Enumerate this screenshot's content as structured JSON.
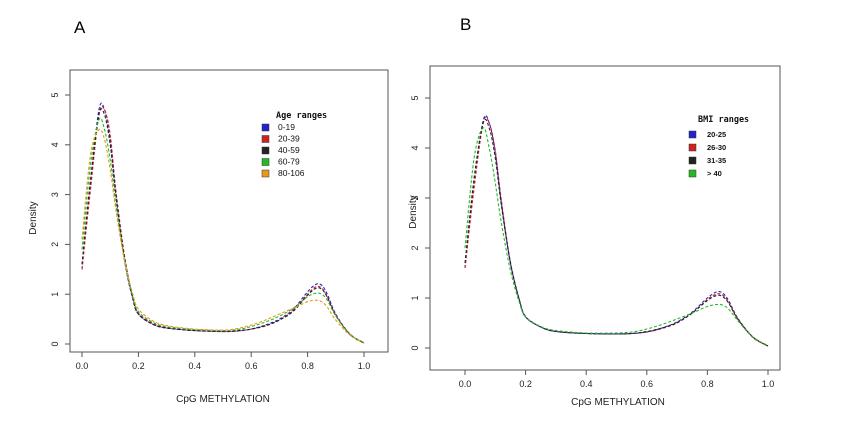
{
  "chart_data": [
    {
      "type": "line",
      "panel": "A",
      "xlabel": "CpG METHYLATION",
      "ylabel": "Density",
      "xlim": [
        0,
        1
      ],
      "ylim": [
        0,
        5
      ],
      "xticks": [
        "0.0",
        "0.2",
        "0.4",
        "0.6",
        "0.8",
        "1.0"
      ],
      "yticks": [
        "0",
        "1",
        "2",
        "3",
        "4",
        "5"
      ],
      "grid": false,
      "legend_title": "Age ranges",
      "legend_position": "top-right",
      "x": [
        0.0,
        0.03,
        0.06,
        0.08,
        0.1,
        0.12,
        0.15,
        0.18,
        0.2,
        0.25,
        0.3,
        0.4,
        0.5,
        0.55,
        0.6,
        0.65,
        0.7,
        0.75,
        0.8,
        0.83,
        0.85,
        0.87,
        0.9,
        0.95,
        1.0
      ],
      "series": [
        {
          "name": "0-19",
          "color": "#2222cc",
          "values": [
            1.5,
            3.2,
            4.7,
            4.7,
            4.1,
            3.0,
            1.7,
            0.9,
            0.6,
            0.4,
            0.32,
            0.27,
            0.25,
            0.26,
            0.3,
            0.38,
            0.5,
            0.7,
            1.05,
            1.2,
            1.18,
            1.0,
            0.6,
            0.2,
            0.02
          ]
        },
        {
          "name": "20-39",
          "color": "#cc2222",
          "values": [
            1.5,
            3.1,
            4.6,
            4.7,
            4.2,
            3.1,
            1.8,
            0.95,
            0.62,
            0.42,
            0.33,
            0.27,
            0.25,
            0.26,
            0.3,
            0.36,
            0.48,
            0.68,
            1.0,
            1.15,
            1.12,
            0.95,
            0.58,
            0.2,
            0.02
          ]
        },
        {
          "name": "40-59",
          "color": "#222222",
          "values": [
            1.6,
            3.3,
            4.6,
            4.6,
            4.0,
            3.0,
            1.75,
            0.92,
            0.6,
            0.4,
            0.32,
            0.27,
            0.26,
            0.27,
            0.3,
            0.37,
            0.48,
            0.66,
            0.98,
            1.12,
            1.1,
            0.94,
            0.57,
            0.19,
            0.02
          ]
        },
        {
          "name": "60-79",
          "color": "#22bb22",
          "values": [
            1.9,
            3.6,
            4.5,
            4.3,
            3.7,
            2.8,
            1.7,
            0.95,
            0.65,
            0.44,
            0.35,
            0.29,
            0.27,
            0.29,
            0.35,
            0.44,
            0.56,
            0.72,
            0.95,
            1.02,
            1.0,
            0.88,
            0.56,
            0.2,
            0.03
          ]
        },
        {
          "name": "80-106",
          "color": "#e69a1a",
          "values": [
            2.1,
            3.8,
            4.3,
            4.1,
            3.5,
            2.7,
            1.7,
            1.0,
            0.7,
            0.47,
            0.37,
            0.3,
            0.28,
            0.31,
            0.38,
            0.48,
            0.6,
            0.72,
            0.85,
            0.88,
            0.85,
            0.74,
            0.48,
            0.18,
            0.03
          ]
        }
      ]
    },
    {
      "type": "line",
      "panel": "B",
      "xlabel": "CpG METHYLATION",
      "ylabel": "Density",
      "xlim": [
        0,
        1
      ],
      "ylim": [
        0,
        5
      ],
      "xticks": [
        "0.0",
        "0.2",
        "0.4",
        "0.6",
        "0.8",
        "1.0"
      ],
      "yticks": [
        "0",
        "1",
        "2",
        "3",
        "4",
        "5"
      ],
      "grid": false,
      "legend_title": "BMI  ranges",
      "legend_position": "top-right",
      "x": [
        0.0,
        0.03,
        0.06,
        0.08,
        0.1,
        0.12,
        0.15,
        0.18,
        0.2,
        0.25,
        0.3,
        0.4,
        0.5,
        0.55,
        0.6,
        0.65,
        0.7,
        0.75,
        0.8,
        0.83,
        0.85,
        0.87,
        0.9,
        0.95,
        1.0
      ],
      "series": [
        {
          "name": "20-25",
          "color": "#2222cc",
          "values": [
            1.6,
            3.3,
            4.55,
            4.5,
            3.9,
            2.9,
            1.7,
            0.95,
            0.62,
            0.42,
            0.33,
            0.29,
            0.28,
            0.29,
            0.32,
            0.4,
            0.52,
            0.72,
            1.0,
            1.12,
            1.1,
            0.95,
            0.6,
            0.22,
            0.04
          ]
        },
        {
          "name": "26-30",
          "color": "#cc2222",
          "values": [
            1.6,
            3.2,
            4.5,
            4.5,
            3.95,
            2.95,
            1.72,
            0.95,
            0.62,
            0.42,
            0.33,
            0.29,
            0.28,
            0.29,
            0.32,
            0.39,
            0.5,
            0.7,
            0.97,
            1.08,
            1.06,
            0.92,
            0.58,
            0.21,
            0.04
          ]
        },
        {
          "name": "31-35",
          "color": "#222222",
          "values": [
            1.7,
            3.4,
            4.5,
            4.4,
            3.8,
            2.85,
            1.7,
            0.95,
            0.63,
            0.42,
            0.33,
            0.29,
            0.28,
            0.29,
            0.33,
            0.4,
            0.51,
            0.7,
            0.95,
            1.05,
            1.03,
            0.9,
            0.58,
            0.22,
            0.04
          ]
        },
        {
          "name": "> 40",
          "color": "#22bb22",
          "values": [
            2.0,
            3.8,
            4.4,
            4.0,
            3.3,
            2.5,
            1.55,
            0.9,
            0.62,
            0.43,
            0.35,
            0.3,
            0.3,
            0.32,
            0.38,
            0.47,
            0.58,
            0.7,
            0.83,
            0.87,
            0.86,
            0.78,
            0.55,
            0.22,
            0.05
          ]
        }
      ]
    }
  ]
}
